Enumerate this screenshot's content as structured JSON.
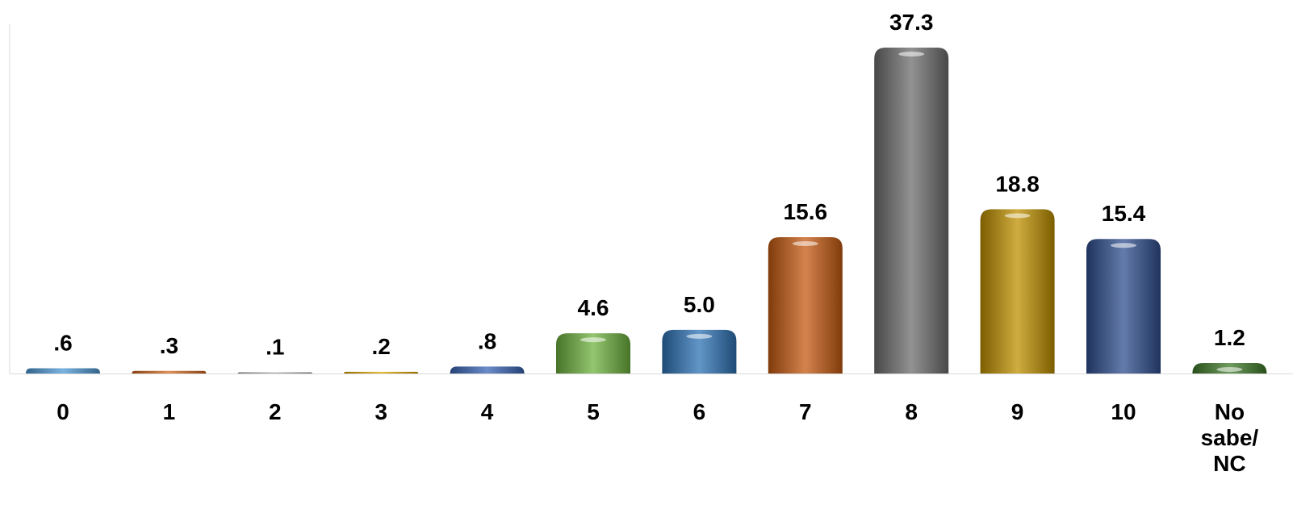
{
  "chart_data": {
    "type": "bar",
    "categories": [
      "0",
      "1",
      "2",
      "3",
      "4",
      "5",
      "6",
      "7",
      "8",
      "9",
      "10",
      "No sabe/ NC"
    ],
    "category_lines": [
      [
        "0"
      ],
      [
        "1"
      ],
      [
        "2"
      ],
      [
        "3"
      ],
      [
        "4"
      ],
      [
        "5"
      ],
      [
        "6"
      ],
      [
        "7"
      ],
      [
        "8"
      ],
      [
        "9"
      ],
      [
        "10"
      ],
      [
        "No",
        "sabe/",
        "NC"
      ]
    ],
    "values": [
      0.6,
      0.3,
      0.1,
      0.2,
      0.8,
      4.6,
      5.0,
      15.6,
      37.3,
      18.8,
      15.4,
      1.2
    ],
    "value_labels": [
      ".6",
      ".3",
      ".1",
      ".2",
      ".8",
      "4.6",
      "5.0",
      "15.6",
      "37.3",
      "18.8",
      "15.4",
      "1.2"
    ],
    "colors": [
      "#4f9ad6",
      "#d2691e",
      "#a6a6a6",
      "#e0a800",
      "#3a66b5",
      "#6fb33f",
      "#2e73b6",
      "#c55a11",
      "#6e6e6e",
      "#bf9000",
      "#2f4f8f",
      "#3f7a2a"
    ],
    "title": "",
    "xlabel": "",
    "ylabel": "",
    "ylim": [
      0,
      40
    ],
    "grid": false,
    "legend": "none"
  }
}
